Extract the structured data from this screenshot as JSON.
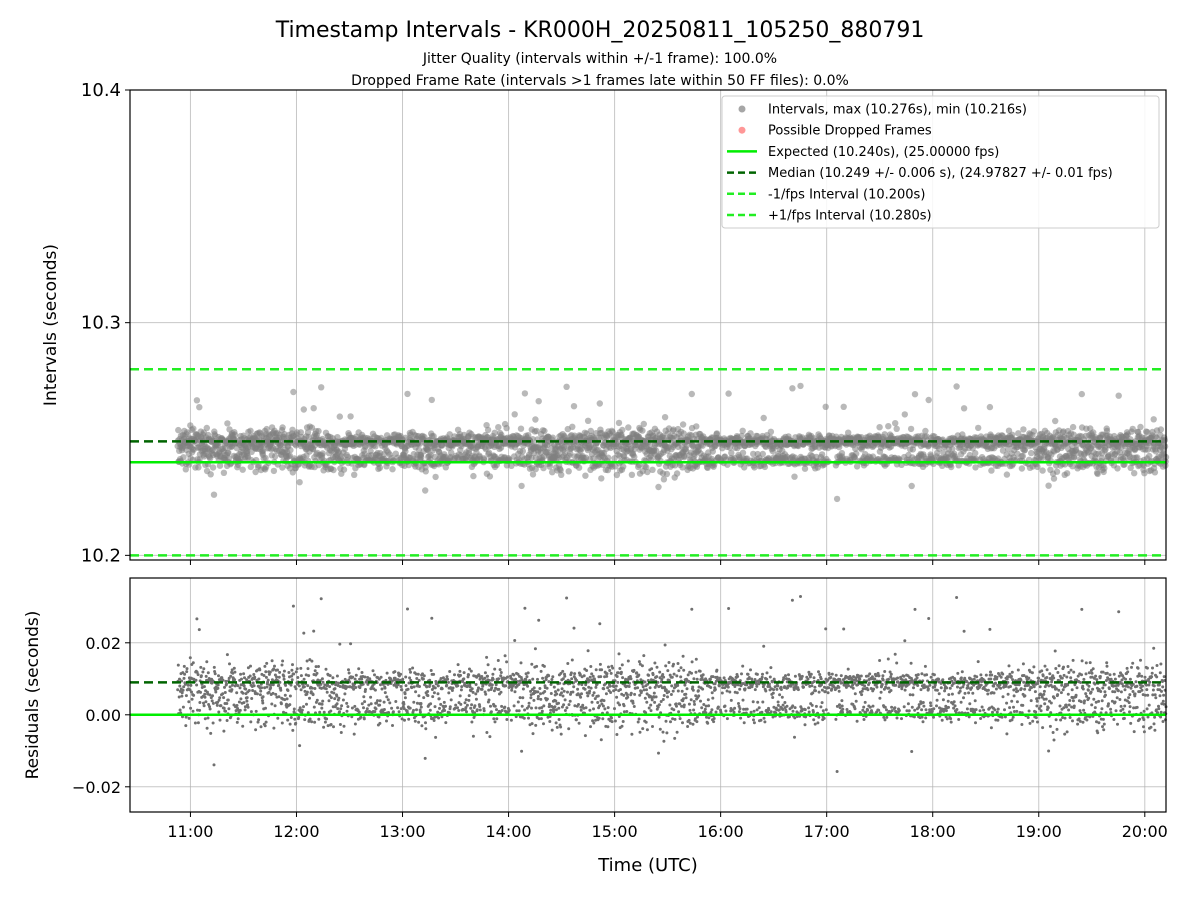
{
  "chart_data": {
    "type": "scatter",
    "title": "Timestamp Intervals - KR000H_20250811_105250_880791",
    "subtitle_lines": [
      "Jitter Quality (intervals within +/-1 frame): 100.0%",
      "Dropped Frame Rate (intervals >1 frames late within 50 FF files): 0.0%"
    ],
    "xlabel": "Time (UTC)",
    "x_ticks": [
      "11:00",
      "12:00",
      "13:00",
      "14:00",
      "15:00",
      "16:00",
      "17:00",
      "18:00",
      "19:00",
      "20:00"
    ],
    "x_range_hours": [
      10.43,
      20.2
    ],
    "top": {
      "ylabel": "Intervals (seconds)",
      "ylim": [
        10.198,
        10.4
      ],
      "y_ticks": [
        "10.2",
        "10.3",
        "10.4"
      ],
      "y_tick_values": [
        10.2,
        10.3,
        10.4
      ],
      "expected": 10.24,
      "median": 10.249,
      "minus_interval": 10.2,
      "plus_interval": 10.28,
      "max": 10.276,
      "min": 10.216,
      "grid": true
    },
    "bottom": {
      "ylabel": "Residuals (seconds)",
      "ylim": [
        -0.027,
        0.038
      ],
      "y_ticks": [
        "0.02",
        "0.00",
        "−0.02"
      ],
      "y_tick_values": [
        0.02,
        0.0,
        -0.02
      ],
      "zero": 0.0,
      "median_residual": 0.009,
      "grid": true
    },
    "legend": {
      "placement": "top-right",
      "entries": [
        {
          "label": "Intervals, max (10.276s), min (10.216s)",
          "kind": "dot",
          "color": "#808080"
        },
        {
          "label": "Possible Dropped Frames",
          "kind": "dot",
          "color": "#ff6b6b"
        },
        {
          "label": "Expected (10.240s), (25.00000 fps)",
          "kind": "solid",
          "color": "#00ee00"
        },
        {
          "label": "Median (10.249 +/- 0.006 s), (24.97827 +/- 0.01 fps)",
          "kind": "dashed",
          "color": "#006400"
        },
        {
          "label": "-1/fps Interval (10.200s)",
          "kind": "dashed",
          "color": "#22ee22"
        },
        {
          "label": "+1/fps Interval (10.280s)",
          "kind": "dashed",
          "color": "#22ee22"
        }
      ]
    },
    "series_summary": {
      "name": "Intervals",
      "x_start_hours": 10.88,
      "x_end_hours": 20.2,
      "count_approx": 3300,
      "color": "#808080"
    }
  }
}
